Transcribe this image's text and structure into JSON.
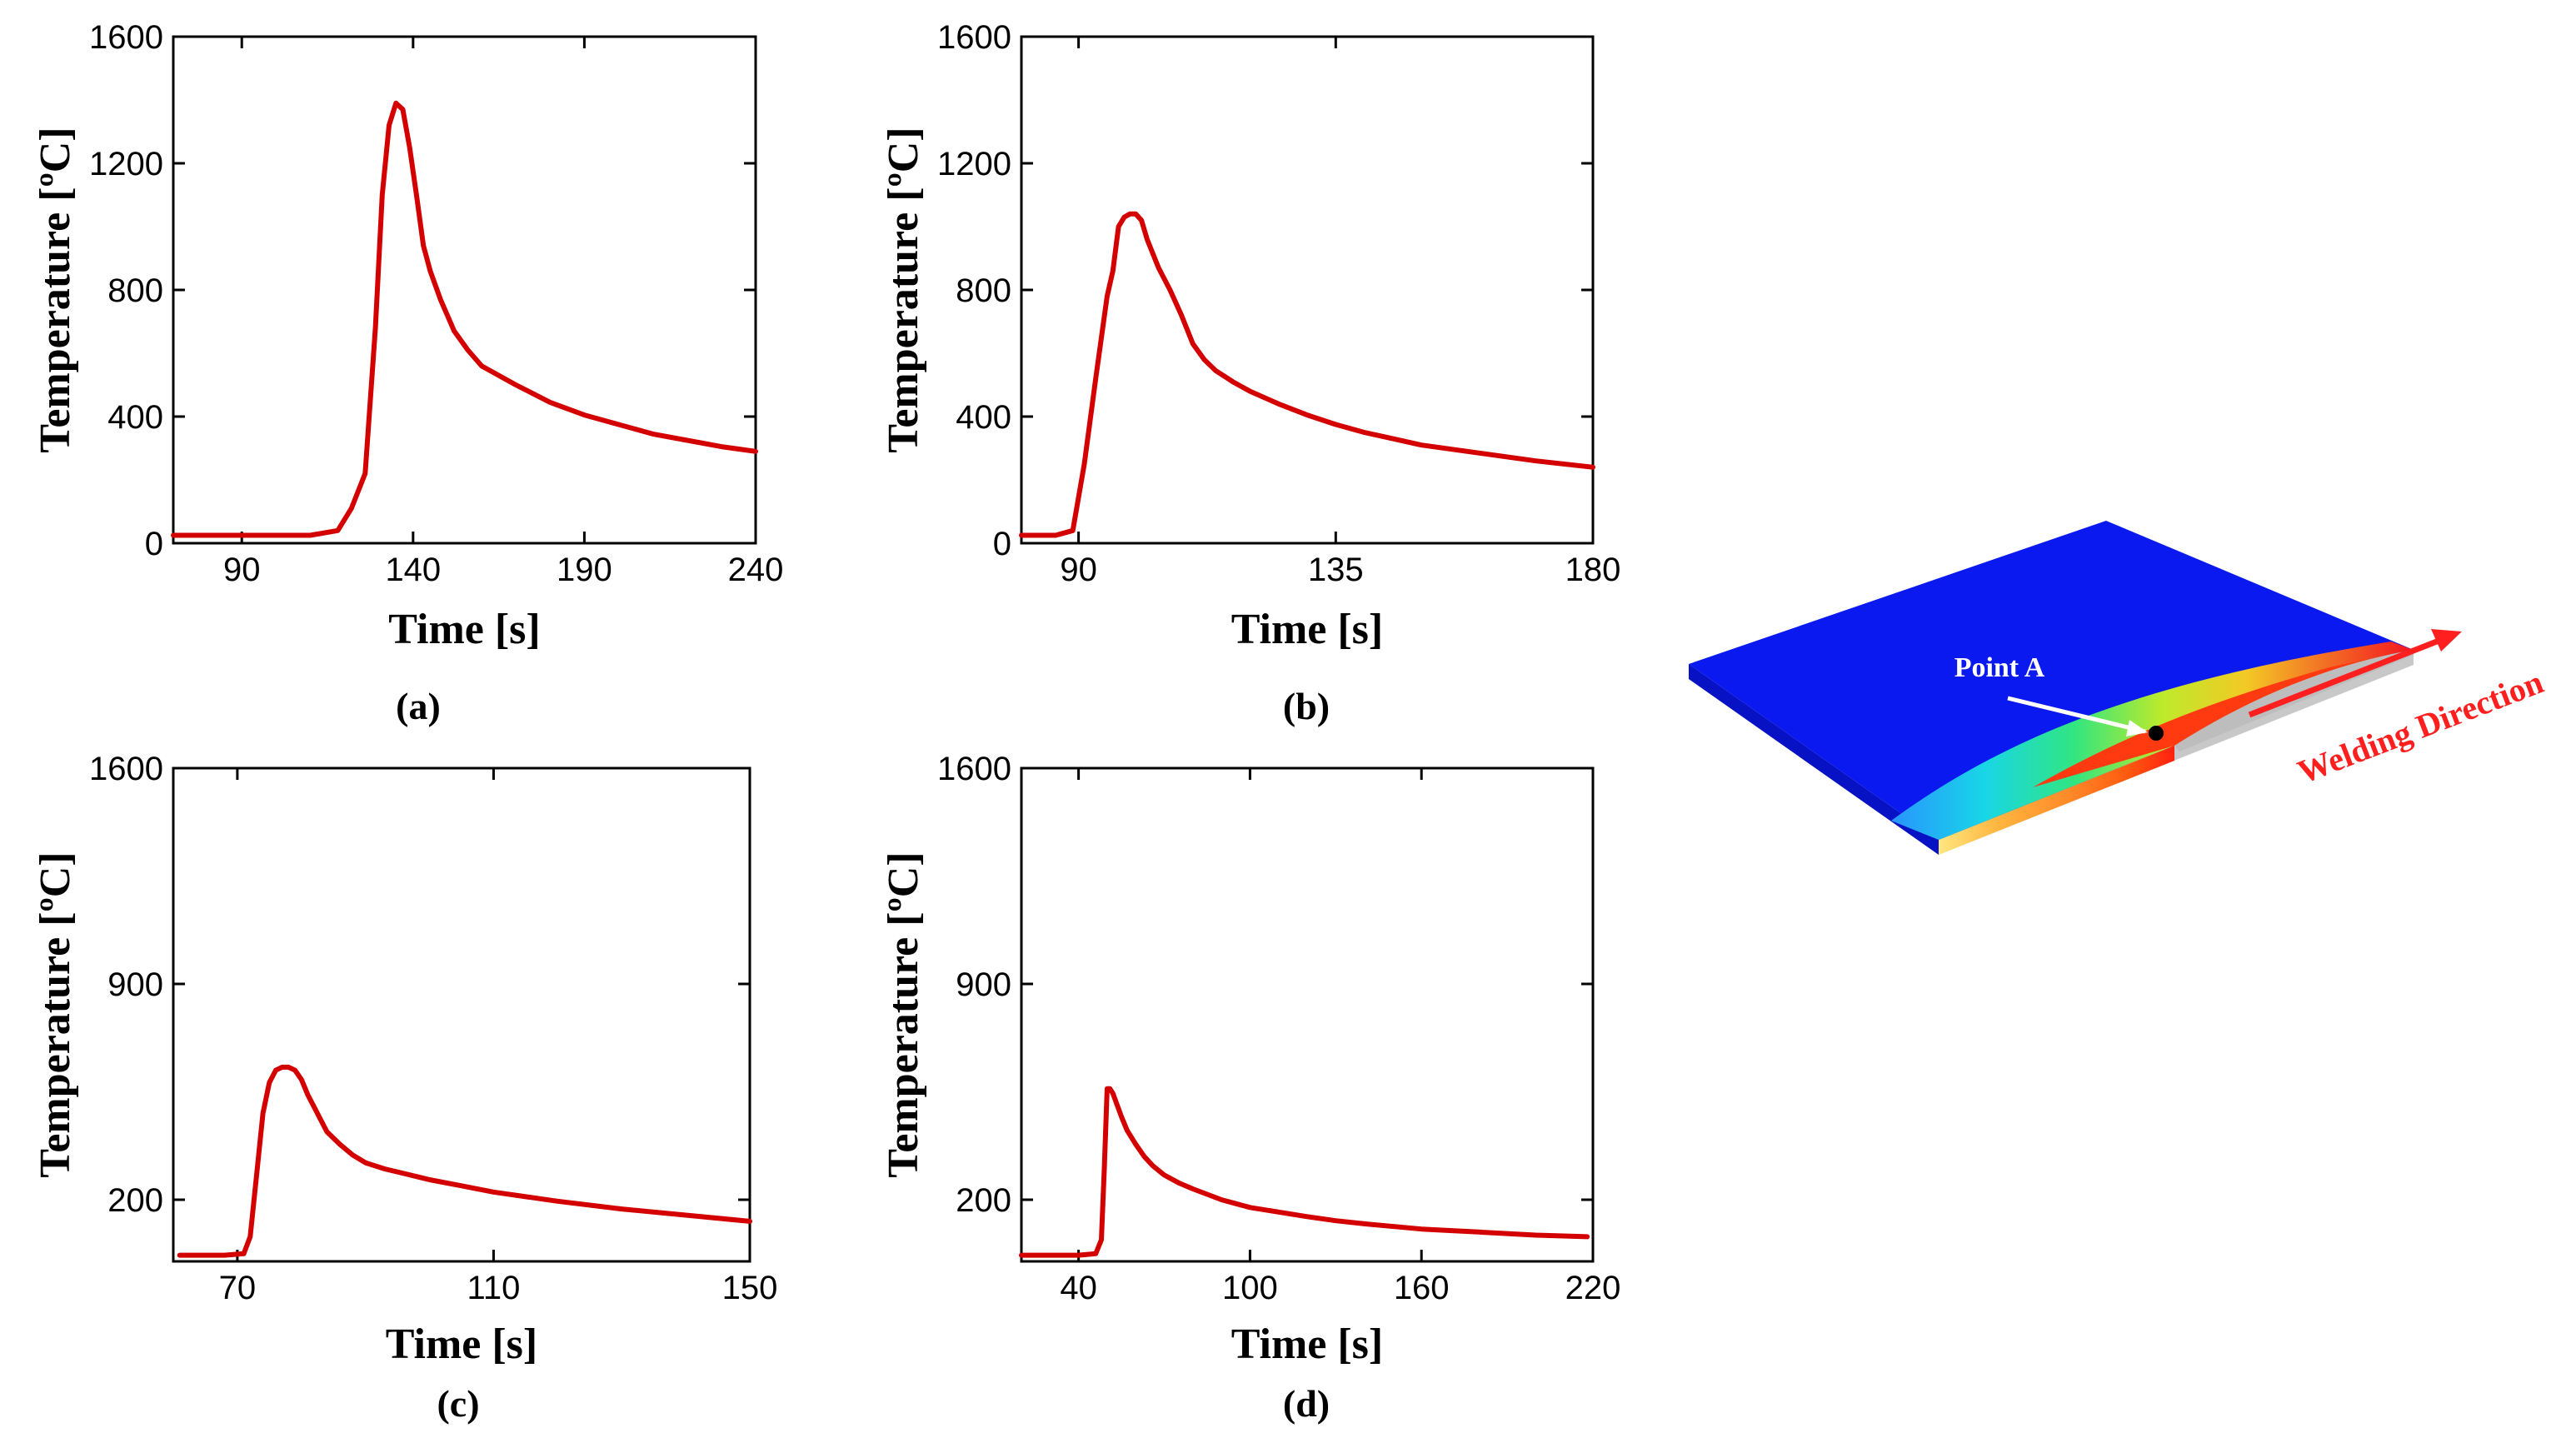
{
  "chart_data": [
    {
      "type": "line",
      "panel_label": "(a)",
      "xlabel": "Time [s]",
      "ylabel": "Temperature [ºC]",
      "xlim": [
        70,
        240
      ],
      "ylim": [
        0,
        1600
      ],
      "xticks": [
        90,
        140,
        190,
        240
      ],
      "yticks": [
        0,
        400,
        800,
        1200,
        1600
      ],
      "series": [
        {
          "color": "#d40000",
          "x": [
            70,
            90,
            110,
            118,
            122,
            126,
            129,
            131,
            133,
            135,
            137,
            139,
            141,
            143,
            145,
            148,
            152,
            156,
            160,
            170,
            180,
            190,
            200,
            210,
            220,
            230,
            240
          ],
          "y": [
            25,
            25,
            25,
            40,
            110,
            220,
            680,
            1100,
            1320,
            1390,
            1370,
            1250,
            1100,
            940,
            860,
            770,
            670,
            610,
            560,
            500,
            445,
            405,
            375,
            345,
            325,
            305,
            290
          ]
        }
      ]
    },
    {
      "type": "line",
      "panel_label": "(b)",
      "xlabel": "Time [s]",
      "ylabel": "Temperature [ºC]",
      "xlim": [
        80,
        180
      ],
      "ylim": [
        0,
        1600
      ],
      "xticks": [
        90,
        135,
        180
      ],
      "yticks": [
        0,
        400,
        800,
        1200,
        1600
      ],
      "series": [
        {
          "color": "#d40000",
          "x": [
            80,
            86,
            89,
            91,
            93,
            95,
            96,
            97,
            98,
            99,
            100,
            101,
            102,
            104,
            106,
            108,
            110,
            112,
            114,
            117,
            120,
            125,
            130,
            135,
            140,
            145,
            150,
            160,
            170,
            180
          ],
          "y": [
            25,
            25,
            40,
            250,
            520,
            780,
            860,
            1000,
            1030,
            1040,
            1040,
            1020,
            960,
            870,
            800,
            720,
            630,
            580,
            545,
            510,
            480,
            440,
            405,
            375,
            350,
            330,
            310,
            285,
            260,
            240
          ]
        }
      ]
    },
    {
      "type": "line",
      "panel_label": "(c)",
      "xlabel": "Time [s]",
      "ylabel": "Temperature [ºC]",
      "xlim": [
        60,
        150
      ],
      "ylim": [
        0,
        1600
      ],
      "xticks": [
        70,
        110,
        150
      ],
      "yticks": [
        200,
        900,
        1600
      ],
      "series": [
        {
          "color": "#d40000",
          "x": [
            61,
            68,
            71,
            72,
            73,
            74,
            75,
            76,
            77,
            78,
            79,
            80,
            81,
            82,
            83,
            84,
            86,
            88,
            90,
            93,
            96,
            100,
            105,
            110,
            120,
            130,
            140,
            150
          ],
          "y": [
            20,
            20,
            25,
            80,
            280,
            480,
            580,
            620,
            630,
            630,
            620,
            590,
            540,
            500,
            460,
            420,
            380,
            345,
            320,
            300,
            285,
            265,
            245,
            225,
            195,
            170,
            150,
            130
          ]
        }
      ]
    },
    {
      "type": "line",
      "panel_label": "(d)",
      "xlabel": "Time [s]",
      "ylabel": "Temperature [ºC]",
      "xlim": [
        20,
        220
      ],
      "ylim": [
        0,
        1600
      ],
      "xticks": [
        40,
        100,
        160,
        220
      ],
      "yticks": [
        200,
        900,
        1600
      ],
      "series": [
        {
          "color": "#d40000",
          "x": [
            20,
            40,
            46,
            48,
            49,
            50,
            51,
            52,
            53,
            55,
            57,
            60,
            63,
            66,
            70,
            75,
            80,
            90,
            100,
            110,
            120,
            130,
            140,
            160,
            180,
            200,
            218
          ],
          "y": [
            20,
            20,
            25,
            70,
            300,
            560,
            560,
            545,
            520,
            470,
            425,
            380,
            340,
            310,
            280,
            255,
            235,
            200,
            175,
            160,
            145,
            132,
            122,
            105,
            95,
            85,
            80
          ]
        }
      ]
    }
  ],
  "inset": {
    "point_label": "Point A",
    "direction_label": "Welding Direction",
    "colors": {
      "plate_top": "#0a19f0",
      "plate_edge": "#0612c4",
      "arrow": "#ff1f1f",
      "point_arrow": "#ffffff"
    }
  }
}
